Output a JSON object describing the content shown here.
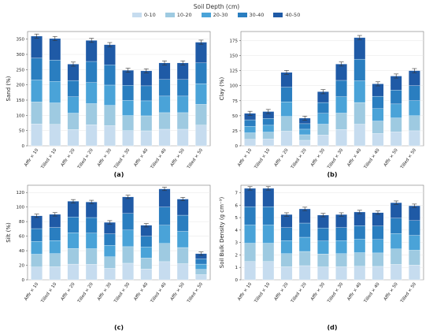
{
  "legend": {
    "title": "Soil Depth (cm)",
    "items": [
      {
        "label": "0-10",
        "color": "#c6dcef"
      },
      {
        "label": "10-20",
        "color": "#9ecae1"
      },
      {
        "label": "20-30",
        "color": "#4aa3d8"
      },
      {
        "label": "30-40",
        "color": "#2a7ec0"
      },
      {
        "label": "40-50",
        "color": "#1f5aa6"
      }
    ]
  },
  "chart_data": [
    {
      "type": "bar",
      "panel": "(a)",
      "ylabel": "Sand (%)",
      "categories": [
        "Afflr × 10",
        "Tilled × 10",
        "Afflr × 20",
        "Tilled × 20",
        "Afflr × 30",
        "Tilled × 30",
        "Afflr × 40",
        "Tilled × 40",
        "Afflr × 50",
        "Tilled × 50"
      ],
      "ylim": [
        0,
        375
      ],
      "yticks": [
        0,
        50,
        100,
        150,
        200,
        250,
        300,
        350
      ],
      "totals": [
        360,
        352,
        268,
        346,
        332,
        248,
        246,
        272,
        272,
        340
      ]
    },
    {
      "type": "bar",
      "panel": "(b)",
      "ylabel": "Clay (%)",
      "categories": [
        "Afflr × 10",
        "Tilled × 10",
        "Afflr × 20",
        "Tilled × 20",
        "Afflr × 30",
        "Tilled × 30",
        "Afflr × 40",
        "Tilled × 40",
        "Afflr × 50",
        "Tilled × 50"
      ],
      "ylim": [
        0,
        190
      ],
      "yticks": [
        0,
        25,
        50,
        75,
        100,
        125,
        150,
        175
      ],
      "totals": [
        54,
        57,
        122,
        46,
        90,
        136,
        180,
        103,
        116,
        125
      ]
    },
    {
      "type": "bar",
      "panel": "(c)",
      "ylabel": "Silt (%)",
      "categories": [
        "Afflr × 10",
        "Tilled × 10",
        "Afflr × 20",
        "Tilled × 20",
        "Afflr × 30",
        "Tilled × 30",
        "Afflr × 40",
        "Tilled × 40",
        "Afflr × 50",
        "Tilled × 50"
      ],
      "ylim": [
        0,
        130
      ],
      "yticks": [
        0,
        20,
        40,
        60,
        80,
        100,
        120
      ],
      "totals": [
        88,
        90,
        108,
        107,
        79,
        114,
        75,
        125,
        111,
        36
      ]
    },
    {
      "type": "bar",
      "panel": "(d)",
      "ylabel": "Soil Bulk Density (g cm⁻³)",
      "categories": [
        "Afflr × 10",
        "Tilled × 10",
        "Afflr × 20",
        "Tilled × 20",
        "Afflr × 30",
        "Tilled × 30",
        "Afflr × 40",
        "Tilled × 40",
        "Afflr × 50",
        "Tilled × 50"
      ],
      "ylim": [
        0,
        7.6
      ],
      "yticks": [
        0,
        1,
        2,
        3,
        4,
        5,
        6,
        7
      ],
      "totals": [
        7.35,
        7.35,
        5.25,
        5.7,
        5.2,
        5.25,
        5.45,
        5.4,
        6.2,
        5.95
      ]
    }
  ]
}
